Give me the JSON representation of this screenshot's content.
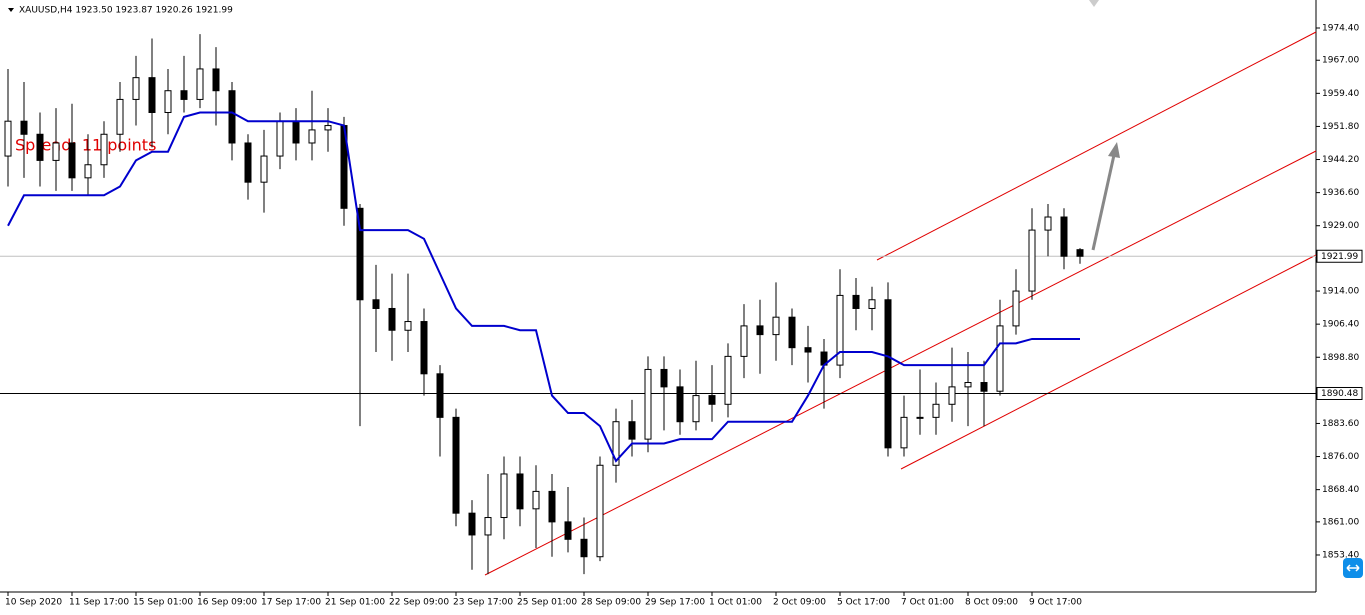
{
  "chart_data": {
    "type": "candlestick",
    "title": "XAUUSD,H4 1923.50 1923.87 1920.26 1921.99",
    "annotation": "Spread: 11 points",
    "categories": [
      "10 Sep 2020",
      null,
      null,
      null,
      "11 Sep 17:00",
      null,
      null,
      null,
      "15 Sep 01:00",
      null,
      null,
      null,
      "16 Sep 09:00",
      null,
      null,
      null,
      "17 Sep 17:00",
      null,
      null,
      null,
      "21 Sep 01:00",
      null,
      null,
      null,
      "22 Sep 09:00",
      null,
      null,
      null,
      "23 Sep 17:00",
      null,
      null,
      null,
      "25 Sep 01:00",
      null,
      null,
      null,
      "28 Sep 09:00",
      null,
      null,
      null,
      "29 Sep 17:00",
      null,
      null,
      null,
      "1 Oct 01:00",
      null,
      null,
      null,
      "2 Oct 09:00",
      null,
      null,
      null,
      "5 Oct 17:00",
      null,
      null,
      null,
      "7 Oct 01:00",
      null,
      null,
      null,
      "8 Oct 09:00",
      null,
      null,
      null,
      "9 Oct 17:00",
      null,
      null,
      null
    ],
    "open": [
      1945,
      1953,
      1950,
      1944,
      1948,
      1940,
      1943,
      1950,
      1958,
      1963,
      1955,
      1960,
      1958,
      1965,
      1960,
      1948,
      1939,
      1945,
      1953,
      1948,
      1951,
      1952,
      1933,
      1912,
      1910,
      1905,
      1907,
      1895,
      1885,
      1863,
      1858,
      1862,
      1872,
      1864,
      1868,
      1861,
      1857,
      1853,
      1874,
      1884,
      1880,
      1896,
      1892,
      1884,
      1890,
      1888,
      1899,
      1906,
      1904,
      1908,
      1901,
      1900,
      1897,
      1913,
      1910,
      1912,
      1878,
      1885,
      1885,
      1888,
      1892,
      1893,
      1891,
      1906,
      1914,
      1928,
      1931,
      1923.5
    ],
    "high": [
      1965,
      1962,
      1955,
      1956,
      1957,
      1950,
      1953,
      1962,
      1968,
      1972,
      1965,
      1968,
      1973,
      1970,
      1962,
      1950,
      1951,
      1955,
      1956,
      1960,
      1956,
      1954,
      1934,
      1920,
      1918,
      1918,
      1910,
      1897,
      1887,
      1866,
      1872,
      1876,
      1876,
      1874,
      1872,
      1869,
      1862,
      1876,
      1887,
      1889,
      1899,
      1899,
      1896,
      1898,
      1897,
      1902,
      1911,
      1912,
      1916,
      1910,
      1906,
      1903,
      1919,
      1917,
      1915,
      1916,
      1890,
      1896,
      1893,
      1901,
      1900,
      1898,
      1912,
      1919,
      1933,
      1934,
      1933,
      1923.87
    ],
    "low": [
      1938,
      1940,
      1938,
      1937,
      1937,
      1936,
      1940,
      1946,
      1952,
      1947,
      1950,
      1955,
      1956,
      1952,
      1944,
      1935,
      1932,
      1942,
      1944,
      1944,
      1946,
      1929,
      1883,
      1900,
      1898,
      1900,
      1890,
      1876,
      1860,
      1850,
      1849,
      1857,
      1860,
      1855,
      1853,
      1854,
      1849,
      1852,
      1870,
      1876,
      1877,
      1882,
      1881,
      1882,
      1884,
      1885,
      1894,
      1895,
      1898,
      1897,
      1893,
      1887,
      1894,
      1905,
      1905,
      1876,
      1876,
      1881,
      1881,
      1884,
      1883,
      1883,
      1890,
      1904,
      1912,
      1922,
      1919,
      1920.26
    ],
    "close": [
      1953,
      1950,
      1944,
      1948,
      1940,
      1943,
      1950,
      1958,
      1963,
      1955,
      1960,
      1958,
      1965,
      1960,
      1948,
      1939,
      1945,
      1953,
      1948,
      1951,
      1952,
      1933,
      1912,
      1910,
      1905,
      1907,
      1895,
      1885,
      1863,
      1858,
      1862,
      1872,
      1864,
      1868,
      1861,
      1857,
      1853,
      1874,
      1884,
      1880,
      1896,
      1892,
      1884,
      1890,
      1888,
      1899,
      1906,
      1904,
      1908,
      1901,
      1900,
      1897,
      1913,
      1910,
      1912,
      1878,
      1885,
      1885,
      1888,
      1892,
      1893,
      1891,
      1906,
      1914,
      1928,
      1931,
      1922,
      1921.99
    ],
    "indicator": {
      "color": "#0000cd",
      "values": [
        1929,
        1936,
        1936,
        1936,
        1936,
        1936,
        1936,
        1938,
        1944,
        1946,
        1946,
        1954,
        1955,
        1955,
        1955,
        1953,
        1953,
        1953,
        1953,
        1953,
        1953,
        1952,
        1928,
        1928,
        1928,
        1928,
        1926,
        1918,
        1910,
        1906,
        1906,
        1906,
        1905,
        1905,
        1890,
        1886,
        1886,
        1883,
        1875,
        1879,
        1879,
        1879,
        1880,
        1880,
        1880,
        1884,
        1884,
        1884,
        1884,
        1884,
        1890,
        1897,
        1900,
        1900,
        1900,
        1899,
        1897,
        1897,
        1897,
        1897,
        1897,
        1897,
        1902,
        1902,
        1903,
        1903,
        1903,
        1903
      ]
    },
    "price_lines": [
      {
        "value": 1921.99,
        "label": "1921.99",
        "color": "#c0c0c0"
      },
      {
        "value": 1890.48,
        "label": "1890.48",
        "color": "#000000"
      }
    ],
    "ylim": [
      1844.9,
      1980.83
    ],
    "yticks": [
      {
        "value": 1974.4,
        "label": "1974.40"
      },
      {
        "value": 1967,
        "label": "1967.00"
      },
      {
        "value": 1959.4,
        "label": "1959.40"
      },
      {
        "value": 1951.8,
        "label": "1951.80"
      },
      {
        "value": 1944.2,
        "label": "1944.20"
      },
      {
        "value": 1936.6,
        "label": "1936.60"
      },
      {
        "value": 1929,
        "label": "1929.00"
      },
      {
        "value": 1914,
        "label": "1914.00"
      },
      {
        "value": 1906.4,
        "label": "1906.40"
      },
      {
        "value": 1898.8,
        "label": "1898.80"
      },
      {
        "value": 1883.6,
        "label": "1883.60"
      },
      {
        "value": 1876,
        "label": "1876.00"
      },
      {
        "value": 1868.4,
        "label": "1868.40"
      },
      {
        "value": 1861,
        "label": "1861.00"
      },
      {
        "value": 1853.4,
        "label": "1853.40"
      }
    ]
  }
}
